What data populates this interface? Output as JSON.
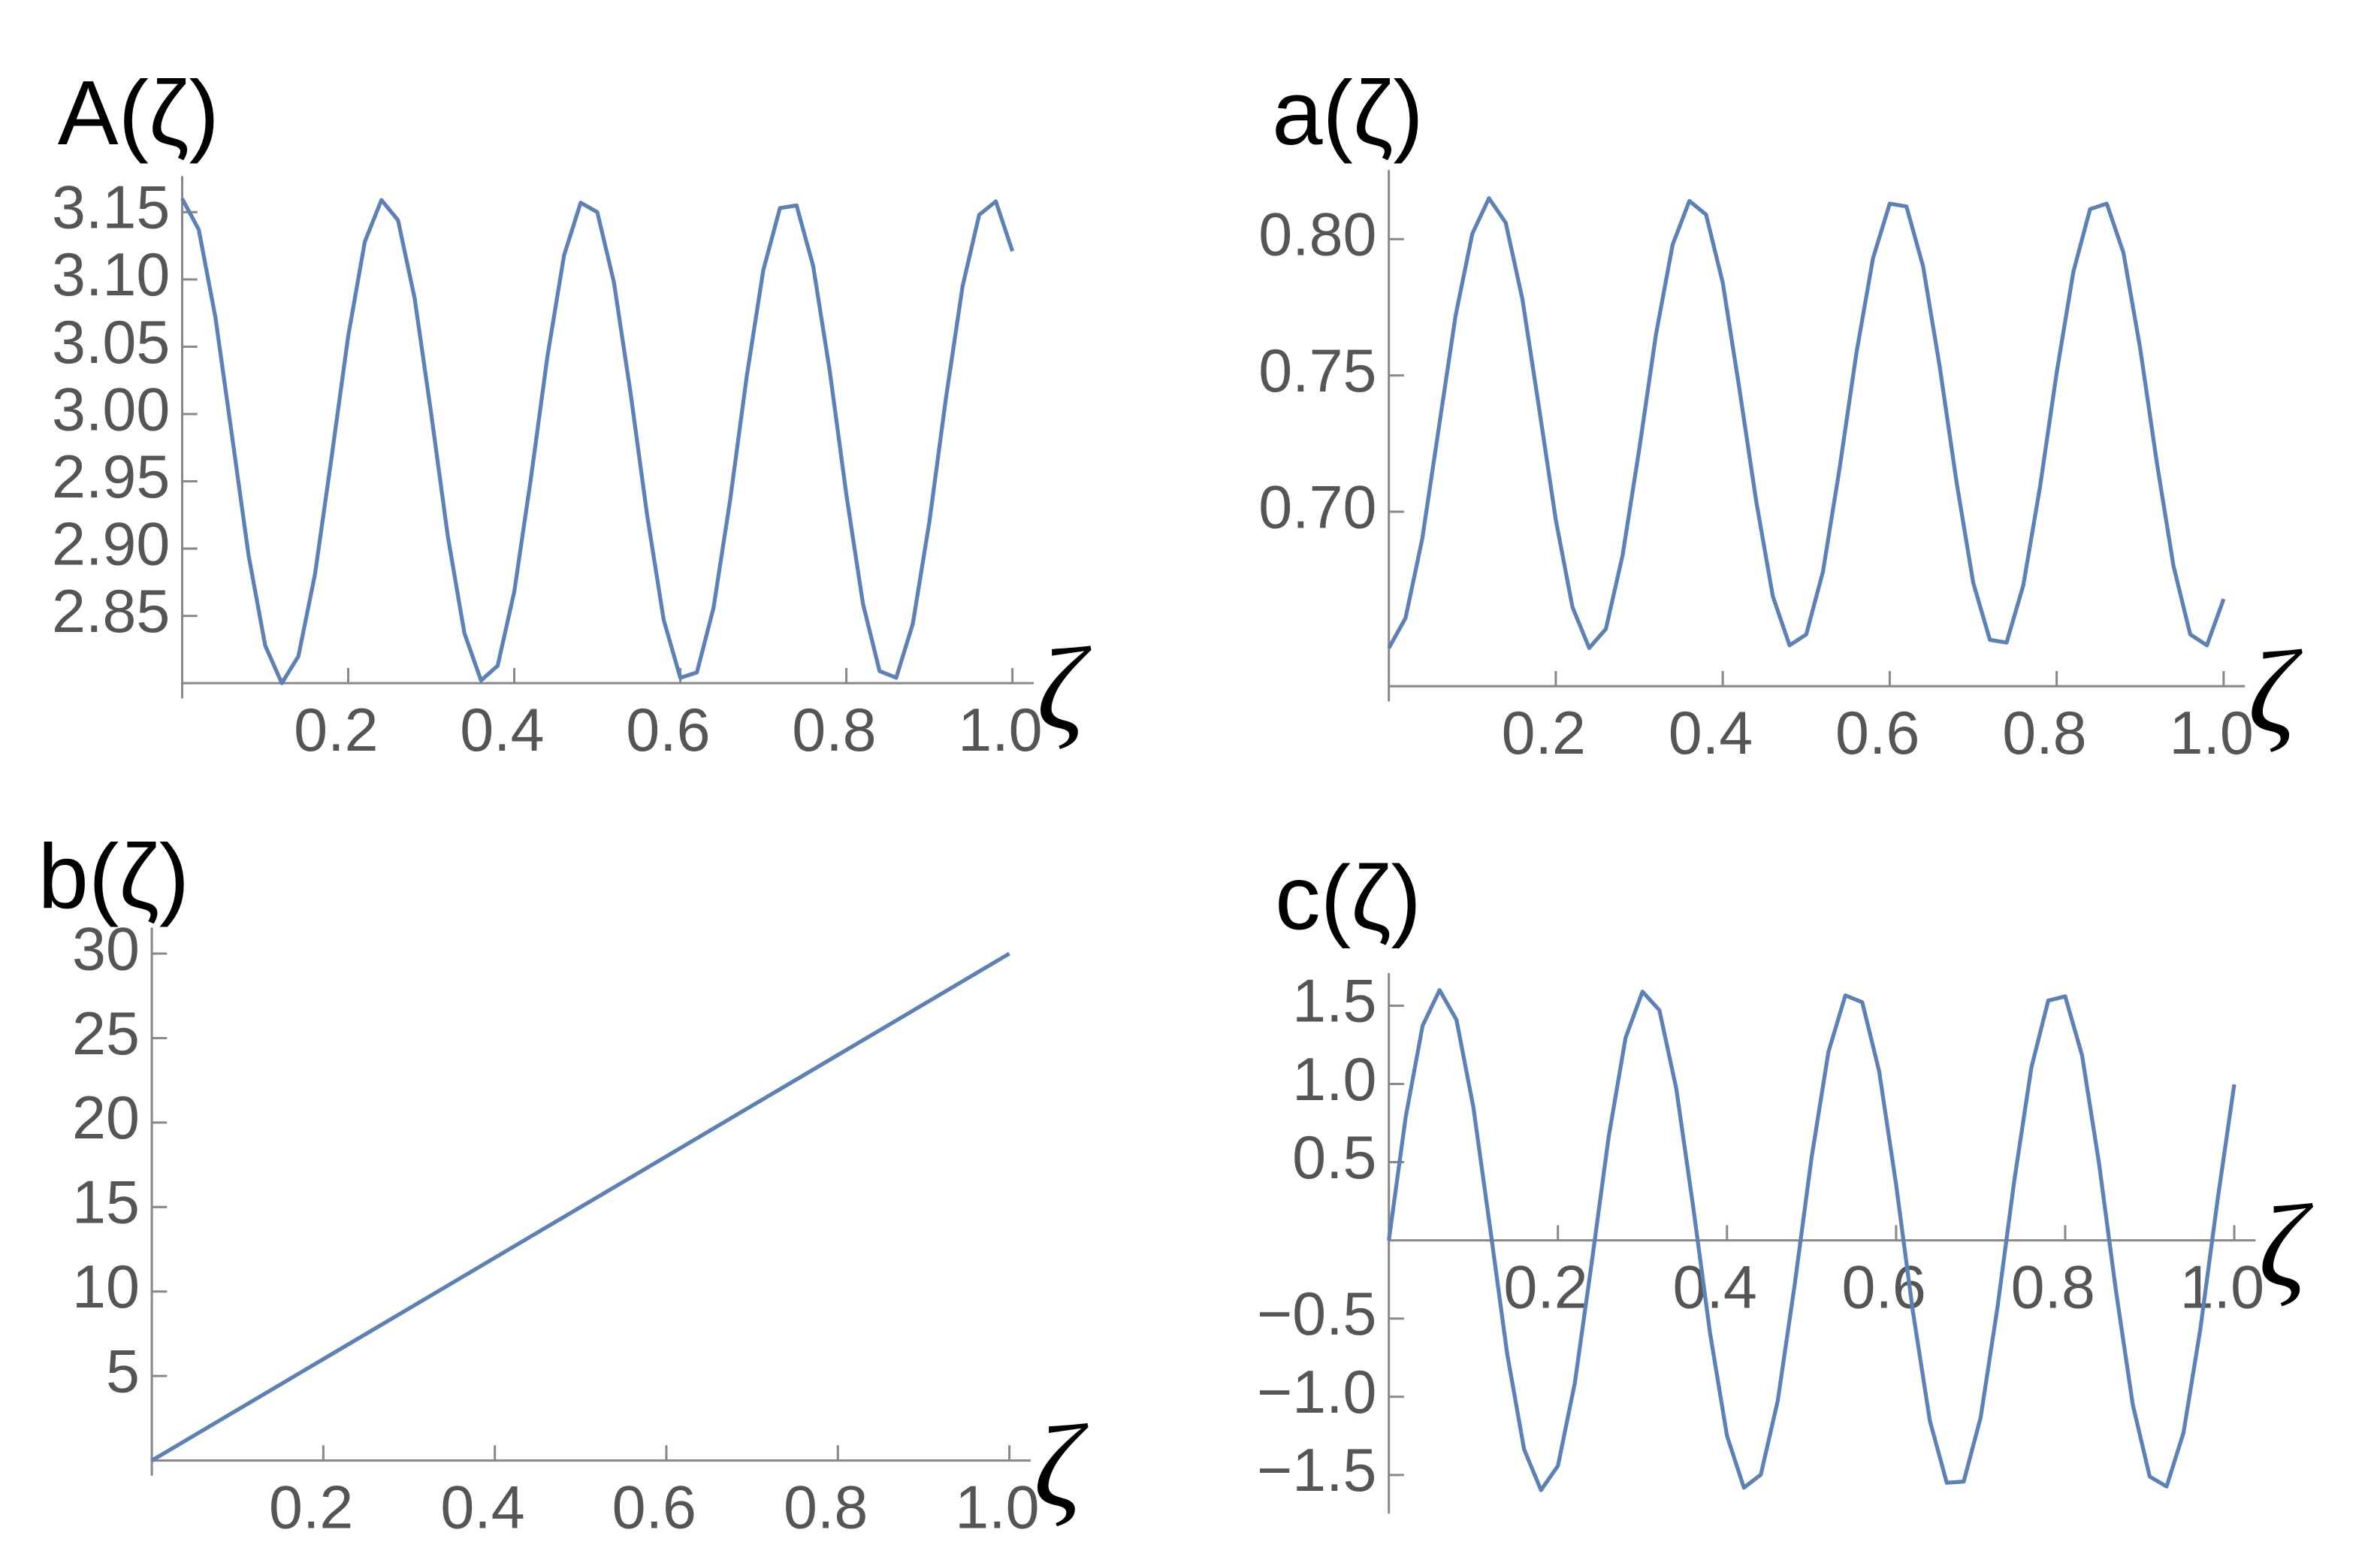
{
  "chart_data": [
    {
      "type": "line",
      "title": "A(ζ)",
      "x_label": "ζ",
      "color": "#5e81b5",
      "x": [
        0,
        0.02,
        0.04,
        0.06,
        0.08,
        0.1,
        0.12,
        0.14,
        0.16,
        0.18,
        0.2,
        0.22,
        0.24,
        0.26,
        0.28,
        0.3,
        0.32,
        0.34,
        0.36,
        0.38,
        0.4,
        0.42,
        0.44,
        0.46,
        0.48,
        0.5,
        0.52,
        0.54,
        0.56,
        0.58,
        0.6,
        0.62,
        0.64,
        0.66,
        0.68,
        0.7,
        0.72,
        0.74,
        0.76,
        0.78,
        0.8,
        0.82,
        0.84,
        0.86,
        0.88,
        0.9,
        0.92,
        0.94,
        0.96,
        0.98,
        1
      ],
      "values": [
        3.16,
        3.137,
        3.072,
        2.984,
        2.895,
        2.828,
        2.8,
        2.82,
        2.881,
        2.968,
        3.058,
        3.128,
        3.159,
        3.144,
        3.086,
        3.0,
        2.909,
        2.837,
        2.802,
        2.813,
        2.868,
        2.952,
        3.043,
        3.118,
        3.157,
        3.15,
        3.098,
        3.016,
        2.925,
        2.847,
        2.804,
        2.808,
        2.856,
        2.936,
        3.028,
        3.107,
        3.153,
        3.155,
        3.11,
        3.032,
        2.94,
        2.859,
        2.809,
        2.804,
        2.844,
        2.92,
        3.012,
        3.095,
        3.148,
        3.158,
        3.121
      ],
      "xlim": [
        0,
        1
      ],
      "xticks": [
        0.2,
        0.4,
        0.6,
        0.8,
        {
          "value": 1,
          "label": "1.0"
        }
      ],
      "ylim": [
        2.8,
        3.17
      ],
      "yticks": [
        2.85,
        {
          "value": 2.9,
          "label": "2.90"
        },
        2.95,
        {
          "value": 3,
          "label": "3.00"
        },
        3.05,
        {
          "value": 3.1,
          "label": "3.10"
        },
        3.15
      ]
    },
    {
      "type": "line",
      "title": "a(ζ)",
      "x_label": "ζ",
      "color": "#5e81b5",
      "x": [
        0,
        0.02,
        0.04,
        0.06,
        0.08,
        0.1,
        0.12,
        0.14,
        0.16,
        0.18,
        0.2,
        0.22,
        0.24,
        0.26,
        0.28,
        0.3,
        0.32,
        0.34,
        0.36,
        0.38,
        0.4,
        0.42,
        0.44,
        0.46,
        0.48,
        0.5,
        0.52,
        0.54,
        0.56,
        0.58,
        0.6,
        0.62,
        0.64,
        0.66,
        0.68,
        0.7,
        0.72,
        0.74,
        0.76,
        0.78,
        0.8,
        0.82,
        0.84,
        0.86,
        0.88,
        0.9,
        0.92,
        0.94,
        0.96,
        0.98,
        1
      ],
      "values": [
        0.65,
        0.661,
        0.69,
        0.731,
        0.772,
        0.802,
        0.815,
        0.806,
        0.778,
        0.738,
        0.697,
        0.665,
        0.65,
        0.657,
        0.684,
        0.723,
        0.765,
        0.798,
        0.814,
        0.809,
        0.784,
        0.745,
        0.704,
        0.669,
        0.651,
        0.655,
        0.678,
        0.716,
        0.758,
        0.793,
        0.813,
        0.812,
        0.79,
        0.753,
        0.711,
        0.674,
        0.653,
        0.652,
        0.673,
        0.709,
        0.751,
        0.788,
        0.811,
        0.813,
        0.795,
        0.76,
        0.718,
        0.68,
        0.655,
        0.651,
        0.668
      ],
      "xlim": [
        0,
        1
      ],
      "xticks": [
        0.2,
        0.4,
        0.6,
        0.8,
        {
          "value": 1,
          "label": "1.0"
        }
      ],
      "ylim": [
        0.636,
        0.822
      ],
      "yticks": [
        {
          "value": 0.7,
          "label": "0.70"
        },
        0.75,
        {
          "value": 0.8,
          "label": "0.80"
        }
      ]
    },
    {
      "type": "line",
      "title": "b(ζ)",
      "x_label": "ζ",
      "color": "#5e81b5",
      "x": [
        0,
        0.02,
        0.04,
        0.06,
        0.08,
        0.1,
        0.12,
        0.14,
        0.16,
        0.18,
        0.2,
        0.22,
        0.24,
        0.26,
        0.28,
        0.3,
        0.32,
        0.34,
        0.36,
        0.38,
        0.4,
        0.42,
        0.44,
        0.46,
        0.48,
        0.5,
        0.52,
        0.54,
        0.56,
        0.58,
        0.6,
        0.62,
        0.64,
        0.66,
        0.68,
        0.7,
        0.72,
        0.74,
        0.76,
        0.78,
        0.8,
        0.82,
        0.84,
        0.86,
        0.88,
        0.9,
        0.92,
        0.94,
        0.96,
        0.98,
        1
      ],
      "values": [
        0,
        0.6,
        1.2,
        1.8,
        2.4,
        3.0,
        3.6,
        4.2,
        4.8,
        5.4,
        6.0,
        6.6,
        7.2,
        7.8,
        8.4,
        9.0,
        9.6,
        10.2,
        10.8,
        11.4,
        12.0,
        12.6,
        13.2,
        13.8,
        14.4,
        15.0,
        15.6,
        16.2,
        16.8,
        17.4,
        18.0,
        18.6,
        19.2,
        19.8,
        20.4,
        21.0,
        21.6,
        22.2,
        22.8,
        23.4,
        24.0,
        24.6,
        25.2,
        25.8,
        26.4,
        27.0,
        27.6,
        28.2,
        28.8,
        29.4,
        30.0
      ],
      "xlim": [
        0,
        1
      ],
      "xticks": [
        0.2,
        0.4,
        0.6,
        0.8,
        {
          "value": 1,
          "label": "1.0"
        }
      ],
      "ylim": [
        0,
        31
      ],
      "yticks": [
        5,
        10,
        15,
        20,
        25,
        30
      ]
    },
    {
      "type": "line",
      "title": "c(ζ)",
      "x_label": "ζ",
      "color": "#5e81b5",
      "x": [
        0,
        0.02,
        0.04,
        0.06,
        0.08,
        0.1,
        0.12,
        0.14,
        0.16,
        0.18,
        0.2,
        0.22,
        0.24,
        0.26,
        0.28,
        0.3,
        0.32,
        0.34,
        0.36,
        0.38,
        0.4,
        0.42,
        0.44,
        0.46,
        0.48,
        0.5,
        0.52,
        0.54,
        0.56,
        0.58,
        0.6,
        0.62,
        0.64,
        0.66,
        0.68,
        0.7,
        0.72,
        0.74,
        0.76,
        0.78,
        0.8,
        0.82,
        0.84,
        0.86,
        0.88,
        0.9,
        0.92,
        0.94,
        0.96,
        0.98,
        1
      ],
      "values": [
        0,
        0.79,
        1.373,
        1.6,
        1.41,
        0.851,
        0.071,
        -0.726,
        -1.336,
        -1.597,
        -1.442,
        -0.912,
        -0.142,
        0.661,
        1.294,
        1.59,
        1.472,
        0.97,
        0.214,
        -0.595,
        -1.25,
        -1.581,
        -1.498,
        -1.026,
        -0.286,
        0.528,
        1.205,
        1.566,
        1.522,
        1.08,
        0.357,
        -0.459,
        -1.155,
        -1.55,
        -1.542,
        -1.133,
        -0.426,
        0.389,
        1.104,
        1.533,
        1.56,
        1.182,
        0.494,
        -0.32,
        -1.051,
        -1.51,
        -1.574,
        -1.229,
        -0.563,
        0.248,
        0.997
      ],
      "xlim": [
        0,
        1
      ],
      "xticks": [
        0.2,
        0.4,
        0.6,
        0.8,
        {
          "value": 1,
          "label": "1.0"
        }
      ],
      "ylim": [
        -1.65,
        1.65
      ],
      "yticks": [
        {
          "value": -1.5,
          "label": "−1.5"
        },
        {
          "value": -1,
          "label": "−1.0"
        },
        {
          "value": -0.5,
          "label": "−0.5"
        },
        0.5,
        {
          "value": 1,
          "label": "1.0"
        },
        1.5
      ]
    }
  ]
}
